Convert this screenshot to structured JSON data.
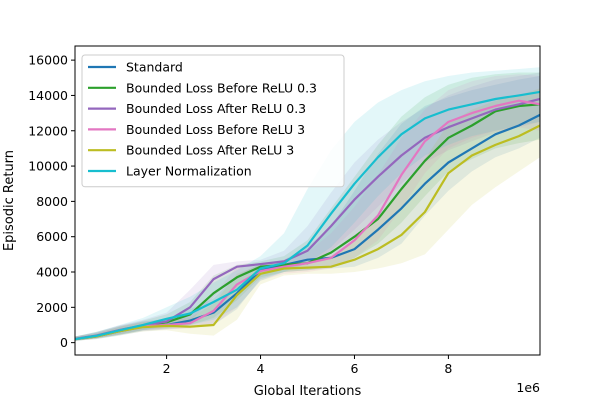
{
  "chart_data": {
    "type": "line",
    "title": "",
    "xlabel": "Global Iterations",
    "ylabel": "Episodic Return",
    "x_offset_label": "1e6",
    "xlim": [
      0.05,
      9.95
    ],
    "ylim": [
      -700,
      16800
    ],
    "xticks": [
      2,
      4,
      6,
      8
    ],
    "xtick_labels": [
      "2",
      "4",
      "6",
      "8"
    ],
    "yticks": [
      0,
      2000,
      4000,
      6000,
      8000,
      10000,
      12000,
      14000,
      16000
    ],
    "ytick_labels": [
      "0",
      "2000",
      "4000",
      "6000",
      "8000",
      "10000",
      "12000",
      "14000",
      "16000"
    ],
    "grid": false,
    "legend_position": "upper-left",
    "x": [
      0.05,
      0.5,
      1.0,
      1.5,
      2.0,
      2.5,
      3.0,
      3.5,
      4.0,
      4.5,
      5.0,
      5.5,
      6.0,
      6.5,
      7.0,
      7.5,
      8.0,
      8.5,
      9.0,
      9.5,
      9.95
    ],
    "series": [
      {
        "name": "Standard",
        "color": "#1f77b4",
        "values": [
          200,
          350,
          650,
          900,
          1000,
          1250,
          1700,
          2800,
          4100,
          4400,
          4700,
          4800,
          5300,
          6400,
          7600,
          9000,
          10200,
          11000,
          11800,
          12300,
          12900
        ],
        "lower": [
          100,
          200,
          400,
          650,
          750,
          850,
          1000,
          1900,
          3600,
          4000,
          4100,
          4200,
          4300,
          4800,
          5600,
          7200,
          8600,
          9700,
          10500,
          11000,
          11600
        ],
        "upper": [
          350,
          550,
          900,
          1200,
          1350,
          1900,
          2500,
          3800,
          4500,
          4700,
          5400,
          6600,
          8600,
          10700,
          12400,
          13400,
          13900,
          14300,
          14600,
          14900,
          15100
        ]
      },
      {
        "name": "Bounded Loss Before ReLU 0.3",
        "color": "#2ca02c",
        "values": [
          200,
          380,
          700,
          950,
          1150,
          1600,
          2800,
          3700,
          4300,
          4400,
          4500,
          5100,
          6000,
          7000,
          8700,
          10300,
          11600,
          12300,
          13100,
          13400,
          13500
        ],
        "lower": [
          100,
          250,
          450,
          700,
          800,
          1000,
          1400,
          2400,
          3700,
          4000,
          4100,
          4300,
          4800,
          5600,
          6800,
          8300,
          9700,
          10400,
          11000,
          11300,
          11500
        ],
        "upper": [
          350,
          600,
          950,
          1250,
          1600,
          2300,
          3800,
          4400,
          4600,
          4900,
          5800,
          7600,
          9400,
          11200,
          12800,
          13900,
          14600,
          15000,
          15200,
          15300,
          15300
        ]
      },
      {
        "name": "Bounded Loss After ReLU 0.3",
        "color": "#9467bd",
        "values": [
          220,
          400,
          720,
          980,
          1200,
          2000,
          3600,
          4300,
          4450,
          4600,
          5200,
          6600,
          8100,
          9400,
          10600,
          11600,
          12200,
          12700,
          13200,
          13500,
          13800
        ],
        "lower": [
          120,
          250,
          480,
          720,
          850,
          1200,
          2600,
          3800,
          4100,
          4200,
          4400,
          5200,
          6400,
          7700,
          9000,
          10200,
          10900,
          11400,
          11900,
          12200,
          12500
        ],
        "upper": [
          350,
          600,
          980,
          1300,
          1700,
          3000,
          4400,
          4600,
          4700,
          5200,
          6600,
          8500,
          10200,
          11500,
          12500,
          13300,
          14000,
          14500,
          14900,
          15100,
          15300
        ]
      },
      {
        "name": "Bounded Loss Before ReLU 3",
        "color": "#e377c2",
        "values": [
          200,
          360,
          700,
          930,
          1000,
          1100,
          1800,
          3300,
          4050,
          4300,
          4500,
          4800,
          5800,
          7200,
          9500,
          11400,
          12500,
          13000,
          13400,
          13700,
          13500
        ],
        "lower": [
          100,
          220,
          450,
          680,
          750,
          800,
          1000,
          2000,
          3500,
          3900,
          4000,
          4200,
          4800,
          5800,
          7600,
          9600,
          11000,
          11600,
          12000,
          12200,
          12000
        ],
        "upper": [
          350,
          560,
          950,
          1200,
          1300,
          1500,
          2700,
          4300,
          4500,
          4600,
          5100,
          6200,
          7700,
          9500,
          11600,
          13200,
          14300,
          14800,
          15100,
          15200,
          15100
        ]
      },
      {
        "name": "Bounded Loss After ReLU 3",
        "color": "#bcbd22",
        "values": [
          200,
          350,
          650,
          880,
          950,
          900,
          1000,
          2700,
          3900,
          4200,
          4250,
          4300,
          4700,
          5300,
          6100,
          7400,
          9600,
          10600,
          11200,
          11700,
          12300
        ],
        "lower": [
          100,
          200,
          420,
          630,
          700,
          500,
          400,
          1300,
          3300,
          3800,
          3900,
          3900,
          4000,
          4200,
          4500,
          5000,
          6400,
          7800,
          8800,
          9700,
          10500
        ],
        "upper": [
          350,
          520,
          900,
          1150,
          1250,
          1400,
          2200,
          3900,
          4400,
          4500,
          4600,
          4900,
          5800,
          7000,
          8600,
          10400,
          12400,
          13200,
          13700,
          14000,
          14400
        ]
      },
      {
        "name": "Layer Normalization",
        "color": "#17becf",
        "values": [
          200,
          380,
          700,
          1000,
          1350,
          1650,
          2300,
          3000,
          4200,
          4500,
          5500,
          7300,
          9000,
          10500,
          11800,
          12700,
          13200,
          13500,
          13800,
          14000,
          14200
        ],
        "lower": [
          100,
          230,
          450,
          700,
          950,
          1000,
          1300,
          2000,
          3500,
          4000,
          4500,
          5400,
          6800,
          8300,
          9600,
          10600,
          11200,
          11700,
          12000,
          12300,
          12500
        ],
        "upper": [
          350,
          600,
          1000,
          1400,
          2000,
          2600,
          3400,
          4100,
          4900,
          6200,
          8700,
          10900,
          12500,
          13600,
          14300,
          14800,
          15100,
          15300,
          15400,
          15500,
          15600
        ]
      }
    ]
  }
}
